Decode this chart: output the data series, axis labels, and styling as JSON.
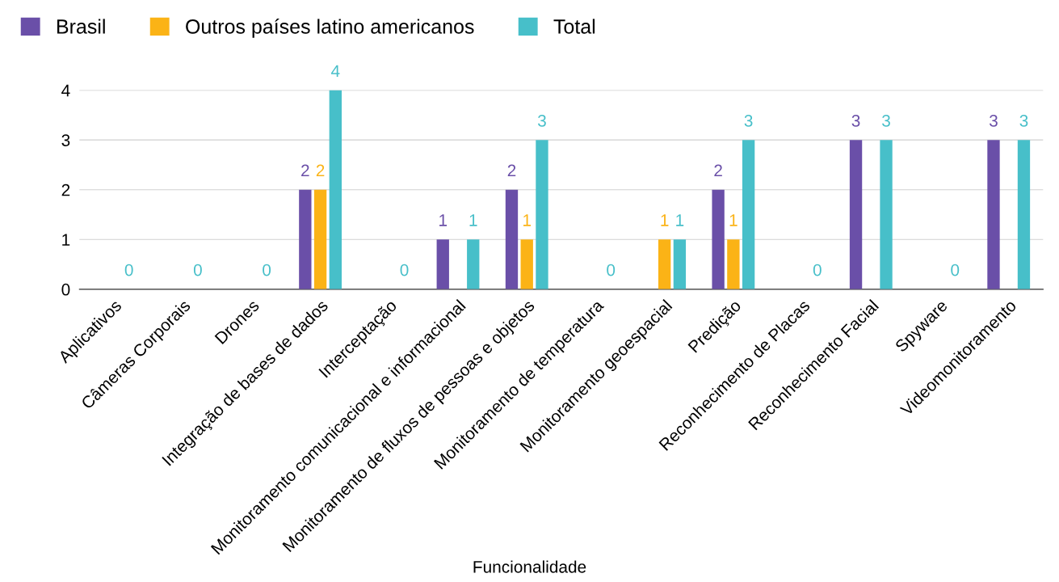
{
  "chart_data": {
    "type": "bar",
    "xlabel": "Funcionalidade",
    "categories": [
      "Aplicativos",
      "Câmeras Corporais",
      "Drones",
      "Integração de bases de dados",
      "Interceptação",
      "Monitoramento comunicacional e informacional",
      "Monitoramento de fluxos de pessoas e objetos",
      "Monitoramento de temperatura",
      "Monitoramento geoespacial",
      "Predição",
      "Reconhecimento de Placas",
      "Reconhecimento Facial",
      "Spyware",
      "Videomonitoramento"
    ],
    "series": [
      {
        "name": "Brasil",
        "color": "#6a4fa8",
        "values": [
          0,
          0,
          0,
          2,
          0,
          1,
          2,
          0,
          0,
          2,
          0,
          3,
          0,
          3
        ],
        "value_labels": [
          null,
          null,
          null,
          "2",
          null,
          "1",
          "2",
          null,
          null,
          "2",
          null,
          "3",
          null,
          "3"
        ]
      },
      {
        "name": "Outros países latino americanos",
        "color": "#fbb316",
        "values": [
          0,
          0,
          0,
          2,
          0,
          0,
          1,
          0,
          1,
          1,
          0,
          0,
          0,
          0
        ],
        "value_labels": [
          null,
          null,
          null,
          "2",
          null,
          null,
          "1",
          null,
          "1",
          "1",
          null,
          null,
          null,
          null
        ]
      },
      {
        "name": "Total",
        "color": "#47bfc9",
        "values": [
          0,
          0,
          0,
          4,
          0,
          1,
          3,
          0,
          1,
          3,
          0,
          3,
          0,
          3
        ],
        "value_labels": [
          "0",
          "0",
          "0",
          "4",
          "0",
          "1",
          "3",
          "0",
          "1",
          "3",
          "0",
          "3",
          "0",
          "3"
        ]
      }
    ],
    "ylim": [
      0,
      4
    ],
    "yticks": [
      0,
      1,
      2,
      3,
      4
    ],
    "grid": "y",
    "legend": "top left"
  }
}
